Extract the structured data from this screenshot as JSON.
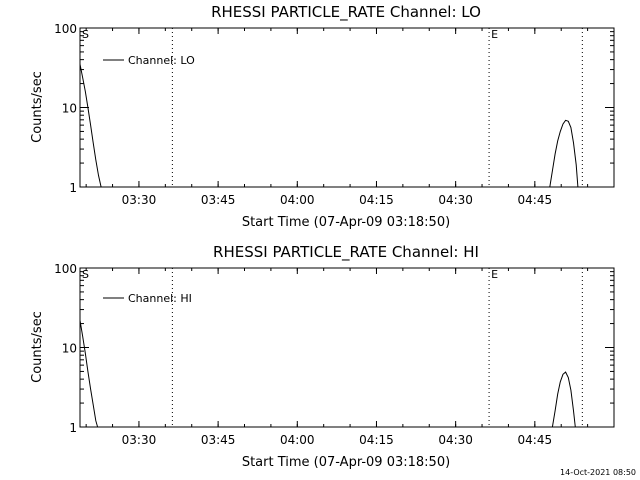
{
  "chart_data": [
    {
      "type": "line",
      "title": "RHESSI PARTICLE_RATE Channel: LO",
      "xlabel": "Start Time (07-Apr-09 03:18:50)",
      "ylabel": "Counts/sec",
      "yscale": "log",
      "ylim": [
        1,
        100
      ],
      "xlim": [
        "03:18:50",
        "05:00:00"
      ],
      "x_ticks": [
        "03:30",
        "03:45",
        "04:00",
        "04:15",
        "04:30",
        "04:45"
      ],
      "y_ticks": [
        "1",
        "10",
        "100"
      ],
      "legend": "top-left",
      "grid": false,
      "markers": [
        {
          "label": "S",
          "time": "03:18:50"
        },
        {
          "label": "",
          "time": "03:36:20"
        },
        {
          "label": "E",
          "time": "04:36:20"
        },
        {
          "label": "",
          "time": "04:54:00"
        }
      ],
      "series": [
        {
          "name": "Channel: LO",
          "segments": [
            {
              "x": [
                "03:18:50",
                "03:19:20",
                "03:19:50",
                "03:20:20",
                "03:20:50",
                "03:21:20",
                "03:21:50",
                "03:22:20",
                "03:22:50"
              ],
              "y": [
                35,
                24,
                16,
                10,
                6,
                3.6,
                2.2,
                1.4,
                1
              ]
            },
            {
              "x": [
                "04:47:50",
                "04:48:20",
                "04:48:50",
                "04:49:20",
                "04:49:50",
                "04:50:20",
                "04:50:50",
                "04:51:20",
                "04:51:50",
                "04:52:20",
                "04:52:50",
                "04:53:10"
              ],
              "y": [
                1,
                1.6,
                2.6,
                3.8,
                5.0,
                6.2,
                6.9,
                6.7,
                5.6,
                3.6,
                1.9,
                1
              ]
            }
          ]
        }
      ]
    },
    {
      "type": "line",
      "title": "RHESSI PARTICLE_RATE Channel: HI",
      "xlabel": "Start Time (07-Apr-09 03:18:50)",
      "ylabel": "Counts/sec",
      "yscale": "log",
      "ylim": [
        1,
        100
      ],
      "xlim": [
        "03:18:50",
        "05:00:00"
      ],
      "x_ticks": [
        "03:30",
        "03:45",
        "04:00",
        "04:15",
        "04:30",
        "04:45"
      ],
      "y_ticks": [
        "1",
        "10",
        "100"
      ],
      "legend": "top-left",
      "grid": false,
      "markers": [
        {
          "label": "S",
          "time": "03:18:50"
        },
        {
          "label": "",
          "time": "03:36:20"
        },
        {
          "label": "E",
          "time": "04:36:20"
        },
        {
          "label": "",
          "time": "04:54:00"
        }
      ],
      "series": [
        {
          "name": "Channel: HI",
          "segments": [
            {
              "x": [
                "03:18:50",
                "03:19:20",
                "03:19:50",
                "03:20:20",
                "03:20:50",
                "03:21:20",
                "03:21:50",
                "03:22:10"
              ],
              "y": [
                22,
                14,
                8.5,
                5,
                3,
                1.9,
                1.2,
                1
              ]
            },
            {
              "x": [
                "04:48:20",
                "04:48:50",
                "04:49:20",
                "04:49:50",
                "04:50:20",
                "04:50:50",
                "04:51:20",
                "04:51:50",
                "04:52:20",
                "04:52:40"
              ],
              "y": [
                1,
                1.6,
                2.6,
                3.7,
                4.6,
                4.9,
                4.2,
                2.9,
                1.6,
                1
              ]
            }
          ]
        }
      ]
    }
  ],
  "footer": {
    "timestamp": "14-Oct-2021 08:50"
  }
}
